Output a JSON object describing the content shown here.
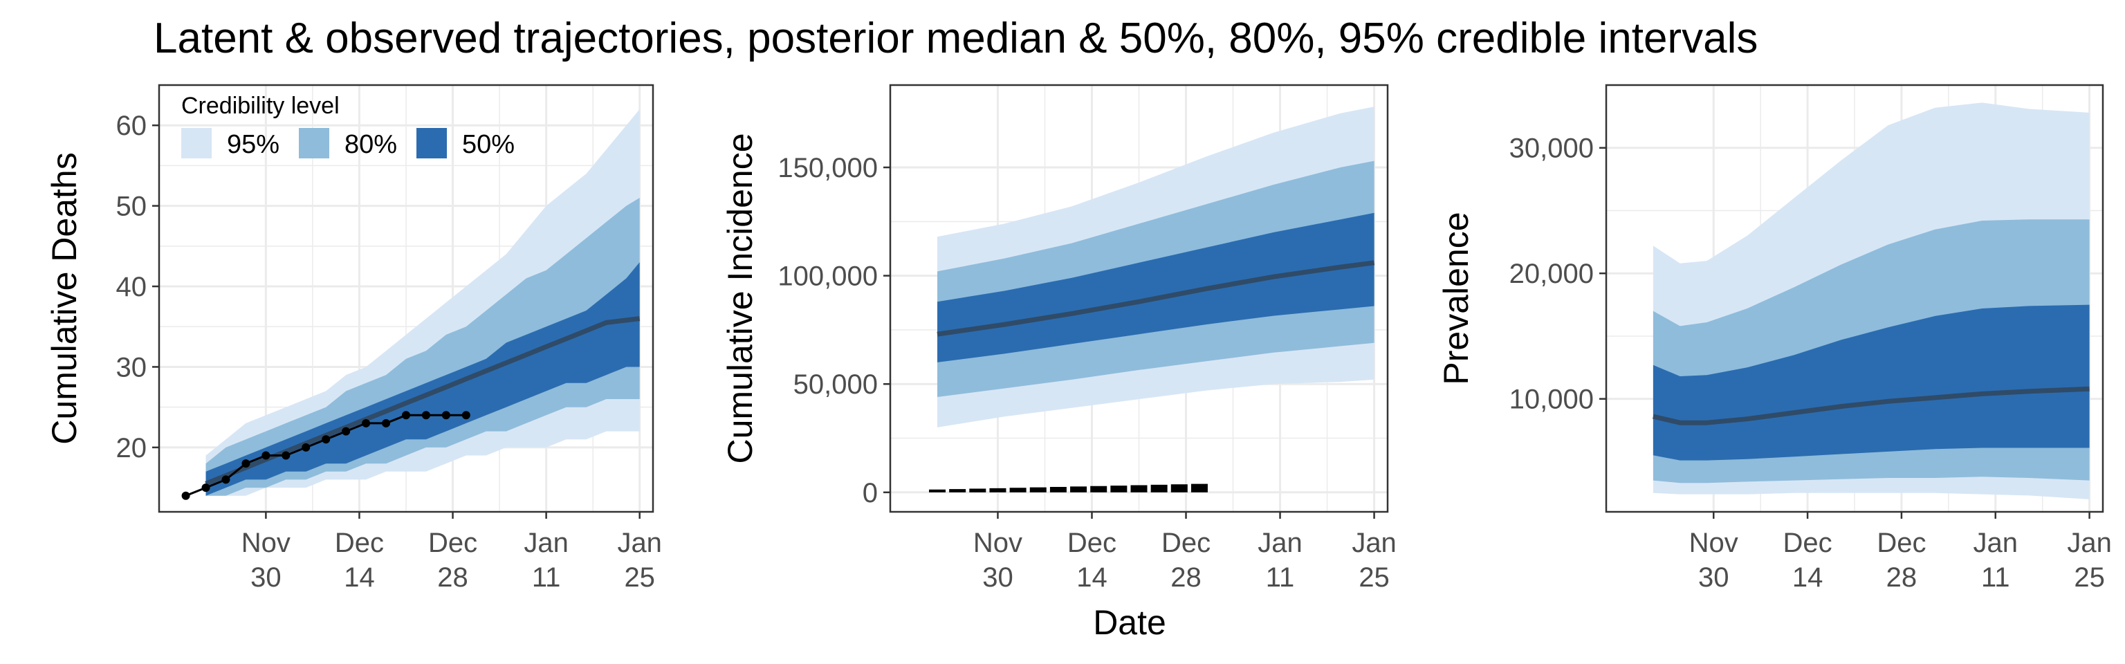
{
  "title": "Latent & observed trajectories, posterior median & 50%, 80%, 95% credible intervals",
  "shared_xlabel": "Date",
  "colors": {
    "band95": "#d7e6f5",
    "band80": "#8fbcdb",
    "band50": "#2b6cb0",
    "median": "#2f4b68",
    "observed": "#000000",
    "grid": "#ebebeb"
  },
  "legend": {
    "title": "Credibility level",
    "items": [
      {
        "label": "95%",
        "color": "#d7e6f5"
      },
      {
        "label": "80%",
        "color": "#8fbcdb"
      },
      {
        "label": "50%",
        "color": "#2b6cb0"
      }
    ]
  },
  "x_ticks": [
    {
      "date": "2020-11-30",
      "line1": "Nov",
      "line2": "30"
    },
    {
      "date": "2020-12-14",
      "line1": "Dec",
      "line2": "14"
    },
    {
      "date": "2020-12-28",
      "line1": "Dec",
      "line2": "28"
    },
    {
      "date": "2021-01-11",
      "line1": "Jan",
      "line2": "11"
    },
    {
      "date": "2021-01-25",
      "line1": "Jan",
      "line2": "25"
    }
  ],
  "chart_data": [
    {
      "type": "area",
      "ylabel": "Cumulative Deaths",
      "xlim": [
        "2020-11-14",
        "2021-01-27"
      ],
      "ylim": [
        12,
        65
      ],
      "yticks": [
        20,
        30,
        40,
        50,
        60
      ],
      "ytick_labels": [
        "20",
        "30",
        "40",
        "50",
        "60"
      ],
      "grid": true,
      "legend": "top-left",
      "x": [
        "2020-11-21",
        "2020-11-24",
        "2020-11-27",
        "2020-11-30",
        "2020-12-03",
        "2020-12-06",
        "2020-12-09",
        "2020-12-12",
        "2020-12-15",
        "2020-12-18",
        "2020-12-21",
        "2020-12-24",
        "2020-12-27",
        "2020-12-30",
        "2021-01-02",
        "2021-01-05",
        "2021-01-08",
        "2021-01-11",
        "2021-01-14",
        "2021-01-17",
        "2021-01-20",
        "2021-01-23",
        "2021-01-25"
      ],
      "median": [
        15.5,
        16.5,
        17.5,
        18.5,
        19.5,
        20.5,
        21.5,
        22.5,
        23.5,
        24.5,
        25.5,
        26.5,
        27.5,
        28.5,
        29.5,
        30.5,
        31.5,
        32.5,
        33.5,
        34.5,
        35.5,
        35.8,
        36
      ],
      "bands": {
        "50": {
          "lower": [
            14,
            15,
            16,
            16,
            17,
            17,
            18,
            18,
            19,
            20,
            21,
            21,
            22,
            23,
            24,
            25,
            26,
            27,
            28,
            28,
            29,
            30,
            30
          ],
          "upper": [
            17,
            18,
            19,
            20,
            21,
            22,
            23,
            24,
            25,
            26,
            27,
            28,
            29,
            30,
            31,
            33,
            34,
            35,
            36,
            37,
            39,
            41,
            43
          ]
        },
        "80": {
          "lower": [
            14,
            14,
            15,
            15,
            16,
            16,
            17,
            17,
            18,
            18,
            19,
            20,
            20,
            21,
            22,
            22,
            23,
            24,
            25,
            25,
            26,
            26,
            26
          ],
          "upper": [
            18,
            20,
            21,
            22,
            23,
            24,
            25,
            27,
            28,
            29,
            31,
            32,
            34,
            35,
            37,
            39,
            41,
            42,
            44,
            46,
            48,
            50,
            51
          ]
        },
        "95": {
          "lower": [
            14,
            14,
            14,
            15,
            15,
            15,
            16,
            16,
            16,
            17,
            17,
            17,
            18,
            19,
            19,
            20,
            20,
            20,
            21,
            21,
            22,
            22,
            22
          ],
          "upper": [
            19,
            21,
            23,
            24,
            25,
            26,
            27,
            29,
            30,
            32,
            34,
            36,
            38,
            40,
            42,
            44,
            47,
            50,
            52,
            54,
            57,
            60,
            62
          ]
        }
      },
      "observed": {
        "x": [
          "2020-11-18",
          "2020-11-21",
          "2020-11-24",
          "2020-11-27",
          "2020-11-30",
          "2020-12-03",
          "2020-12-06",
          "2020-12-09",
          "2020-12-12",
          "2020-12-15",
          "2020-12-18",
          "2020-12-21",
          "2020-12-24",
          "2020-12-27",
          "2020-12-30"
        ],
        "y": [
          14,
          15,
          16,
          18,
          19,
          19,
          20,
          21,
          22,
          23,
          23,
          24,
          24,
          24,
          24
        ]
      }
    },
    {
      "type": "area",
      "ylabel": "Cumulative Incidence",
      "xlim": [
        "2020-11-14",
        "2021-01-27"
      ],
      "ylim": [
        -9000,
        188000
      ],
      "yticks": [
        0,
        50000,
        100000,
        150000
      ],
      "ytick_labels": [
        "0",
        "50,000",
        "100,000",
        "150,000"
      ],
      "grid": true,
      "x": [
        "2020-11-21",
        "2020-12-01",
        "2020-12-11",
        "2020-12-21",
        "2020-12-31",
        "2021-01-10",
        "2021-01-20",
        "2021-01-25"
      ],
      "median": [
        73000,
        77500,
        82500,
        88000,
        94000,
        99500,
        104000,
        106000
      ],
      "bands": {
        "50": {
          "lower": [
            60000,
            64000,
            68500,
            73000,
            77500,
            81500,
            84500,
            86000
          ],
          "upper": [
            88000,
            93000,
            99000,
            106000,
            113000,
            120000,
            126000,
            129000
          ]
        },
        "80": {
          "lower": [
            44000,
            48000,
            52000,
            56500,
            60500,
            64500,
            67500,
            69000
          ],
          "upper": [
            102000,
            108000,
            115000,
            124000,
            133000,
            142000,
            150000,
            153000
          ]
        },
        "95": {
          "lower": [
            30000,
            35000,
            39000,
            43000,
            47000,
            50000,
            51000,
            52000
          ],
          "upper": [
            118000,
            124000,
            132000,
            143000,
            155000,
            166000,
            175000,
            178000
          ]
        }
      },
      "observed": {
        "x": [
          "2020-11-21",
          "2020-11-24",
          "2020-11-27",
          "2020-11-30",
          "2020-12-03",
          "2020-12-06",
          "2020-12-09",
          "2020-12-12",
          "2020-12-15",
          "2020-12-18",
          "2020-12-21",
          "2020-12-24",
          "2020-12-27",
          "2020-12-30"
        ],
        "y": [
          1300,
          1500,
          1700,
          1900,
          2100,
          2300,
          2500,
          2700,
          2900,
          3100,
          3300,
          3500,
          3700,
          3900
        ]
      }
    },
    {
      "type": "area",
      "ylabel": "Prevalence",
      "xlim": [
        "2020-11-14",
        "2021-01-27"
      ],
      "ylim": [
        1000,
        35000
      ],
      "yticks": [
        10000,
        20000,
        30000
      ],
      "ytick_labels": [
        "10,000",
        "20,000",
        "30,000"
      ],
      "grid": true,
      "x": [
        "2020-11-21",
        "2020-11-25",
        "2020-11-29",
        "2020-12-05",
        "2020-12-12",
        "2020-12-19",
        "2020-12-26",
        "2021-01-02",
        "2021-01-09",
        "2021-01-16",
        "2021-01-25"
      ],
      "median": [
        8600,
        8100,
        8100,
        8400,
        8900,
        9400,
        9800,
        10100,
        10400,
        10600,
        10800
      ],
      "bands": {
        "50": {
          "lower": [
            5500,
            5100,
            5100,
            5200,
            5400,
            5600,
            5800,
            6000,
            6100,
            6100,
            6100
          ],
          "upper": [
            12700,
            11800,
            11900,
            12500,
            13500,
            14700,
            15700,
            16600,
            17200,
            17400,
            17500
          ]
        },
        "80": {
          "lower": [
            3500,
            3300,
            3300,
            3400,
            3500,
            3600,
            3700,
            3700,
            3800,
            3700,
            3500
          ],
          "upper": [
            17000,
            15800,
            16100,
            17200,
            18900,
            20700,
            22300,
            23500,
            24200,
            24300,
            24300
          ]
        },
        "95": {
          "lower": [
            2500,
            2400,
            2400,
            2400,
            2500,
            2500,
            2500,
            2500,
            2400,
            2300,
            2000
          ],
          "upper": [
            22200,
            20800,
            21000,
            23000,
            26000,
            29000,
            31800,
            33200,
            33600,
            33100,
            32800
          ]
        }
      }
    }
  ]
}
